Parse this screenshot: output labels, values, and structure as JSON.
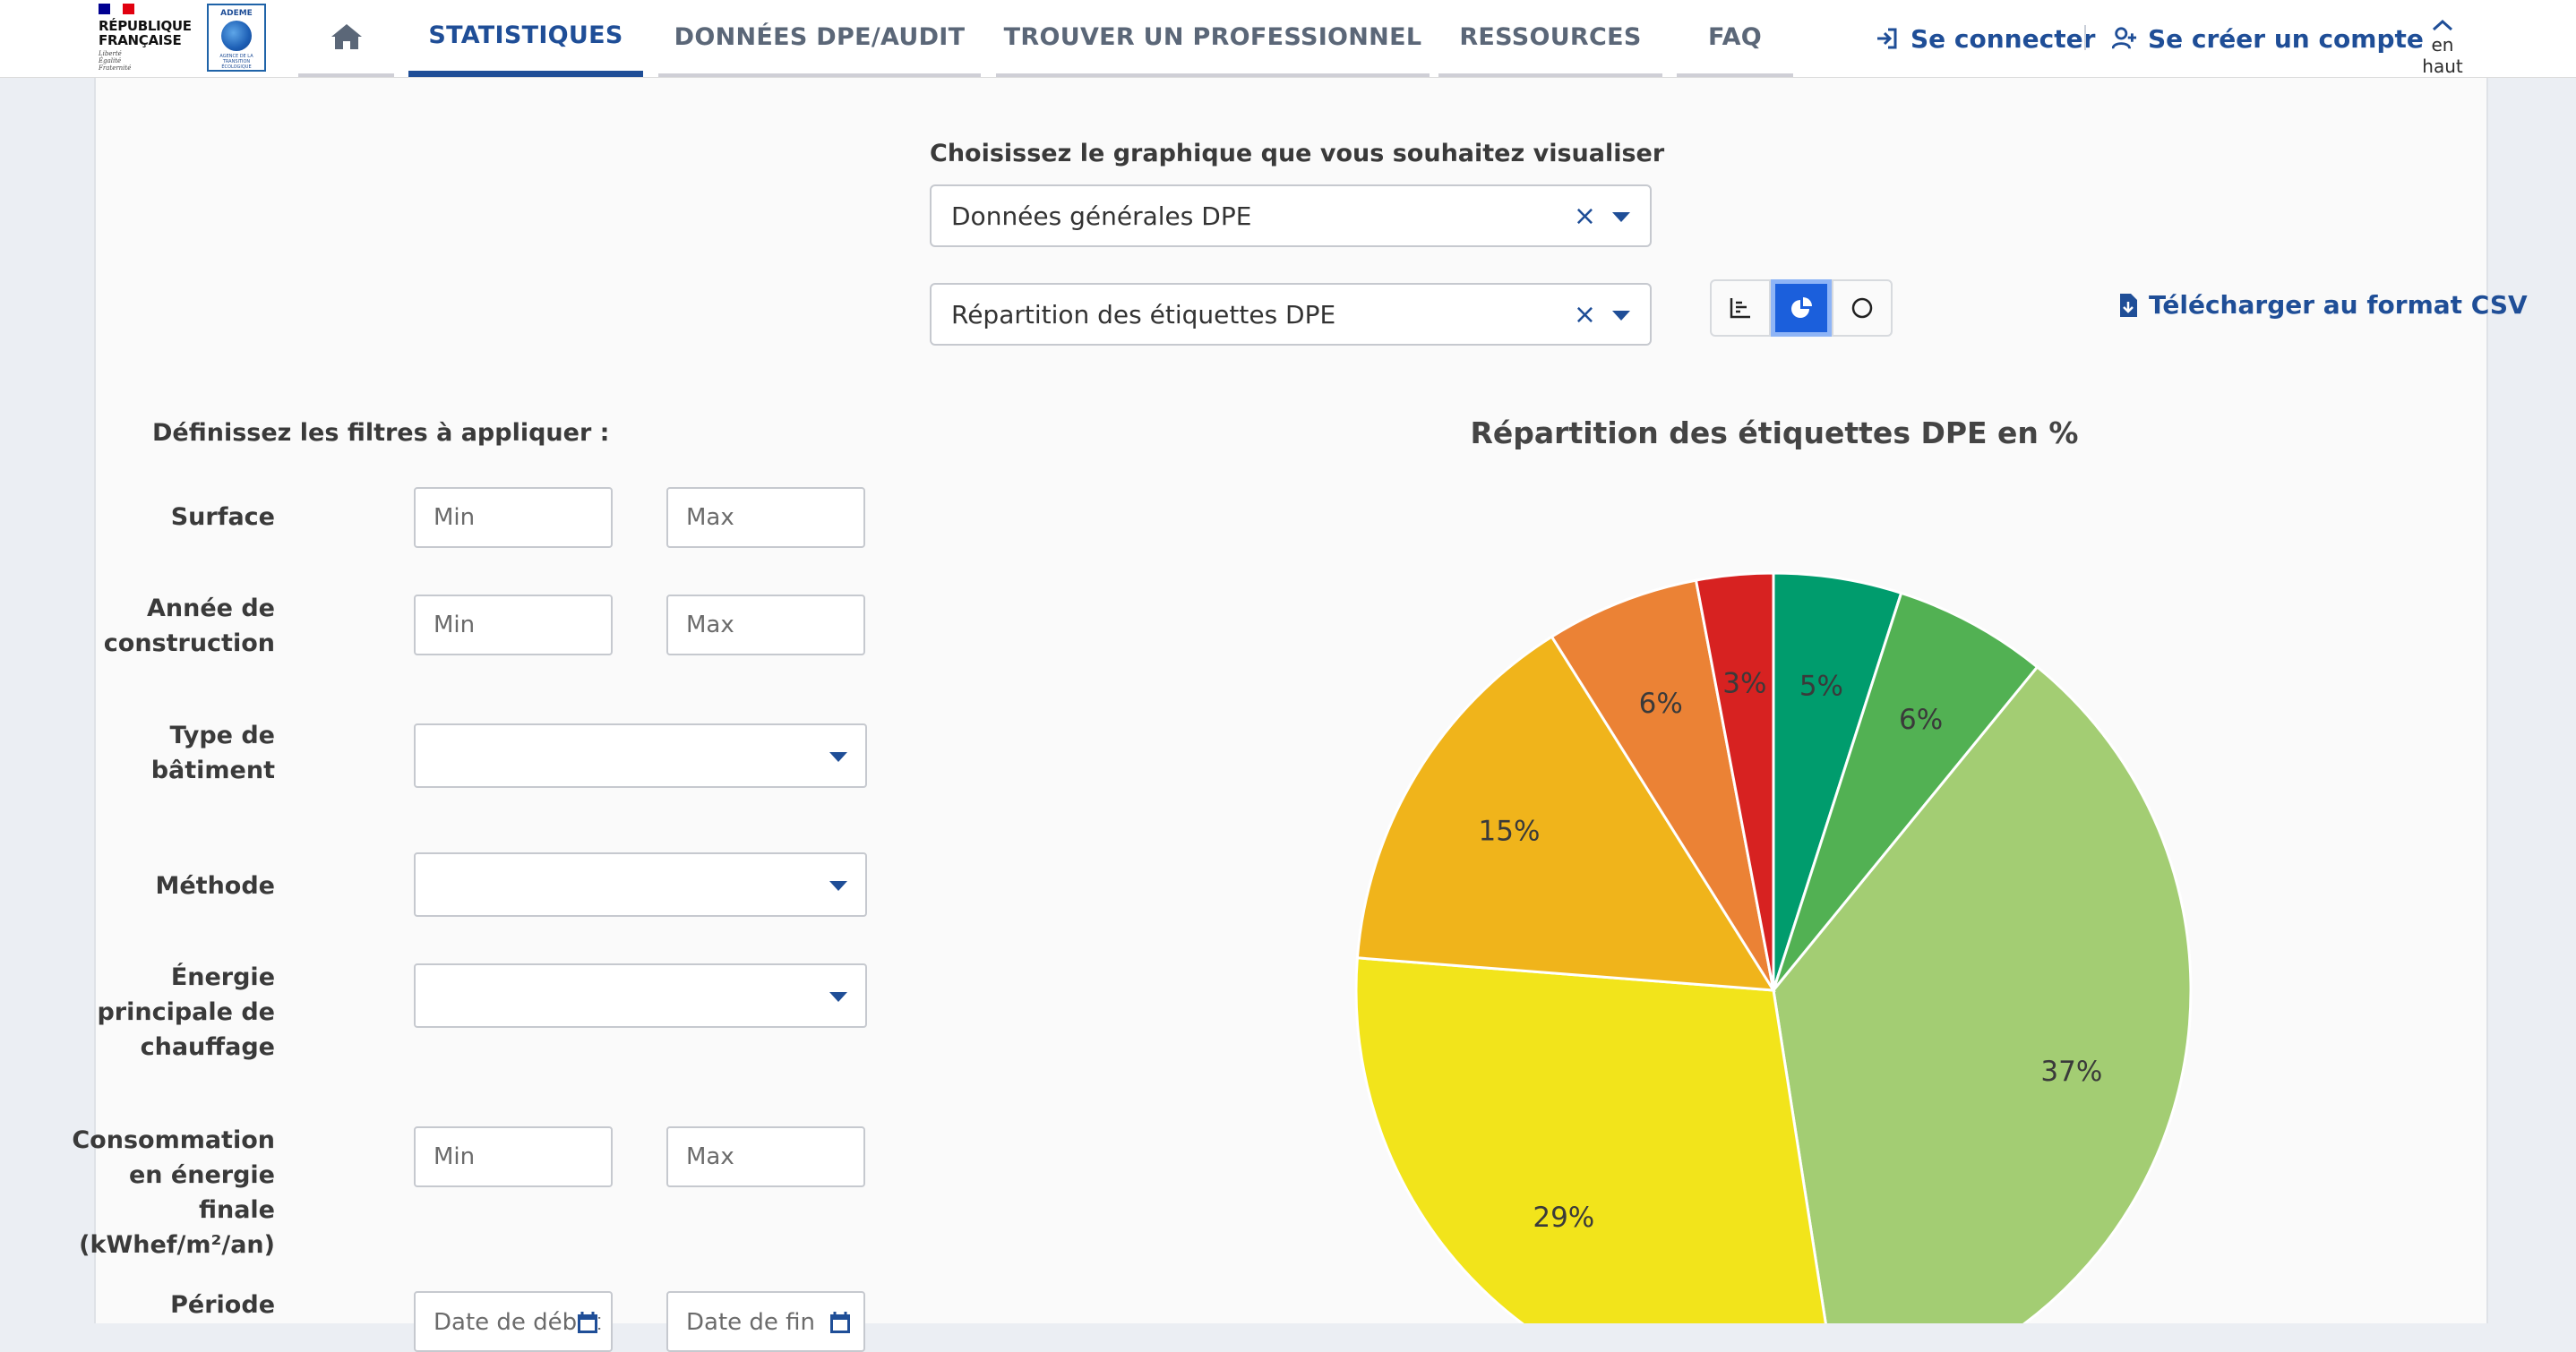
{
  "header": {
    "logo_rf_lines": [
      "RÉPUBLIQUE",
      "FRANÇAISE"
    ],
    "logo_rf_motto": [
      "Liberté",
      "Égalité",
      "Fraternité"
    ],
    "logo_ademe_label": "ADEME",
    "logo_ademe_tagline": "AGENCE DE LA TRANSITION ÉCOLOGIQUE",
    "nav": [
      {
        "label": "",
        "icon": "home-icon"
      },
      {
        "label": "STATISTIQUES",
        "active": true
      },
      {
        "label": "DONNÉES DPE/AUDIT"
      },
      {
        "label": "TROUVER UN PROFESSIONNEL"
      },
      {
        "label": "RESSOURCES"
      },
      {
        "label": "FAQ"
      }
    ],
    "login_label": "Se connecter",
    "signup_label": "Se créer un compte",
    "to_top_label": "en haut"
  },
  "chooser": {
    "label": "Choisissez le graphique que vous souhaitez visualiser",
    "dataset_value": "Données générales DPE",
    "chart_value": "Répartition des étiquettes DPE",
    "clear_glyph": "×",
    "view_toggle": [
      "bar-chart-icon",
      "pie-chart-icon",
      "donut-chart-icon"
    ],
    "active_view": "pie",
    "csv_label": "Télécharger au format CSV"
  },
  "filters": {
    "title": "Définissez les filtres à appliquer :",
    "min_placeholder": "Min",
    "max_placeholder": "Max",
    "surface_label": "Surface",
    "annee_label": "Année de construction",
    "type_label": "Type de bâtiment",
    "methode_label": "Méthode",
    "energie_label": "Énergie principale de chauffage",
    "conso_label": "Consommation en énergie finale (kWhef/m²/an)",
    "periode_label": "Période",
    "date_start_placeholder": "Date de début",
    "date_end_placeholder": "Date de fin"
  },
  "chart_data": {
    "type": "pie",
    "title": "Répartition des étiquettes DPE en %",
    "slices": [
      {
        "value": 5,
        "label": "5%",
        "color": "#009c6d"
      },
      {
        "value": 6,
        "label": "6%",
        "color": "#52b153"
      },
      {
        "value": 37,
        "label": "37%",
        "color": "#a3cd73"
      },
      {
        "value": 29,
        "label": "29%",
        "color": "#f2e41b"
      },
      {
        "value": 15,
        "label": "15%",
        "color": "#f0b41b"
      },
      {
        "value": 6,
        "label": "6%",
        "color": "#eb8235"
      },
      {
        "value": 3,
        "label": "3%",
        "color": "#d72221"
      }
    ]
  }
}
